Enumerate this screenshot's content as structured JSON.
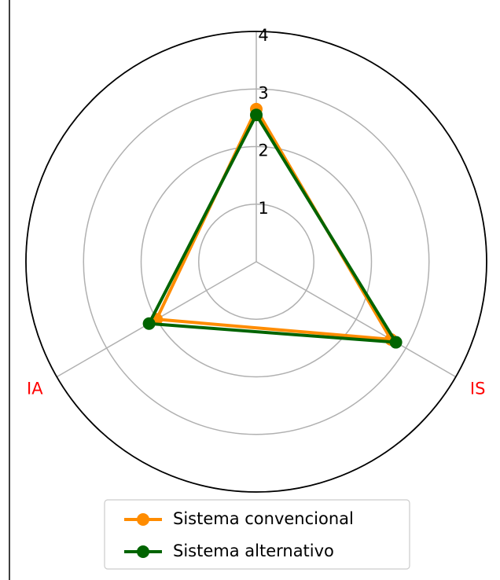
{
  "chart_data": {
    "type": "radar",
    "categories": [
      null,
      "IA",
      "IS"
    ],
    "series": [
      {
        "name": "Sistema convencional",
        "color": "#ff8c00",
        "values": [
          2.65,
          2.0,
          2.7
        ]
      },
      {
        "name": "Sistema alternativo",
        "color": "#006400",
        "values": [
          2.55,
          2.15,
          2.8
        ]
      }
    ],
    "ylim": [
      0,
      4
    ],
    "yticks": [
      1,
      2,
      3,
      4
    ],
    "grid": true,
    "axis_label_color": "#ff0000",
    "legend": "bottom"
  }
}
